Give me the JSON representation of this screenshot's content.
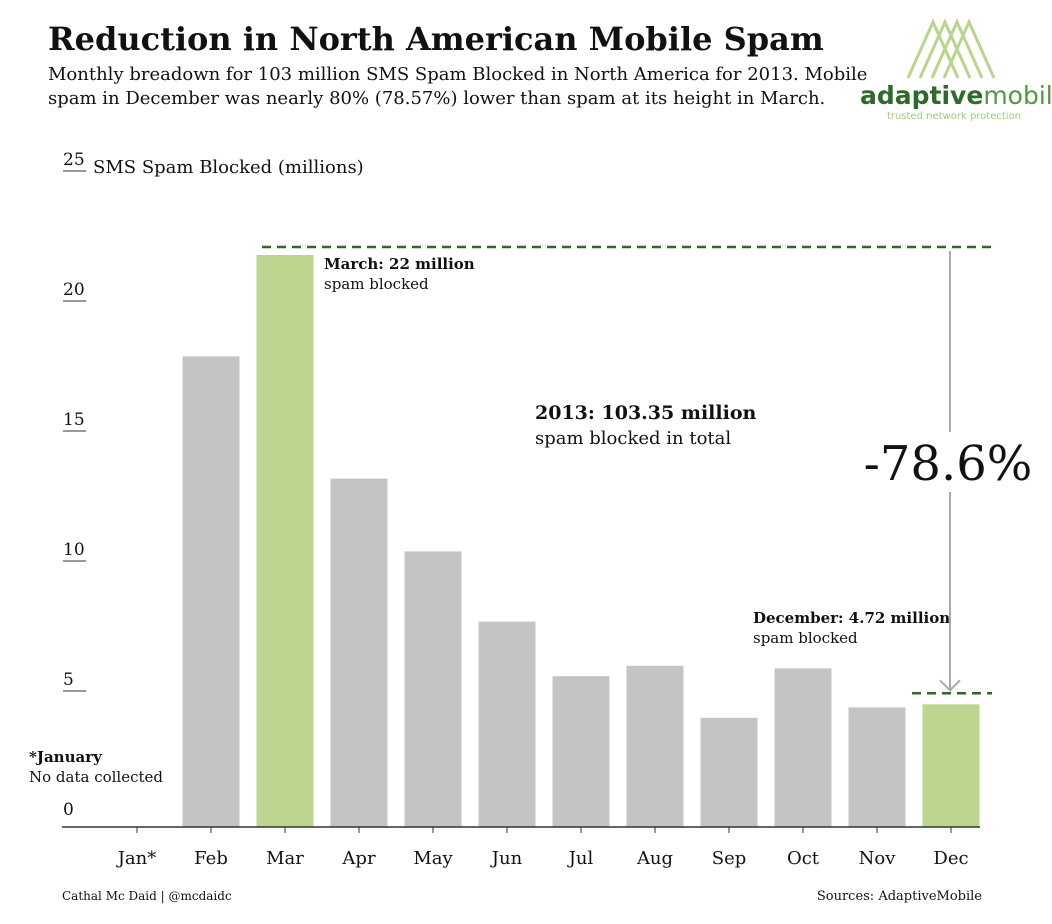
{
  "chart_data": {
    "type": "bar",
    "title": "Reduction in North American Mobile Spam",
    "subtitle": [
      "Monthly breadown for 103 million SMS Spam Blocked in North America for 2013. Mobile",
      "spam in December was nearly 80% (78.57%) lower than spam at its height in March."
    ],
    "y_label": "SMS Spam Blocked (millions)",
    "categories": [
      "Jan*",
      "Feb",
      "Mar",
      "Apr",
      "May",
      "Jun",
      "Jul",
      "Aug",
      "Sep",
      "Oct",
      "Nov",
      "Dec"
    ],
    "values": [
      null,
      18.1,
      22,
      13.4,
      10.6,
      7.9,
      5.8,
      6.2,
      4.2,
      6.1,
      4.6,
      4.72
    ],
    "colors": [
      "#c4c4c4",
      "#c4c4c4",
      "#bdd68f",
      "#c4c4c4",
      "#c4c4c4",
      "#c4c4c4",
      "#c4c4c4",
      "#c4c4c4",
      "#c4c4c4",
      "#c4c4c4",
      "#c4c4c4",
      "#bdd68f"
    ],
    "ylim": [
      0,
      25
    ],
    "yticks": [
      0,
      5,
      10,
      15,
      20,
      25
    ],
    "annotations": {
      "march": [
        "March: 22 million",
        "spam blocked"
      ],
      "total": [
        "2013: 103.35 million",
        "spam blocked in total"
      ],
      "change": "-78.6%",
      "december": [
        "December: 4.72 million",
        "spam blocked"
      ],
      "january": [
        "*January",
        "No data collected"
      ]
    },
    "logo": {
      "parts": [
        "adaptive",
        "mobile"
      ],
      "tagline": "trusted network protection"
    },
    "credit": "Cathal Mc Daid | @mcdaidc",
    "source": "Sources: AdaptiveMobile"
  }
}
